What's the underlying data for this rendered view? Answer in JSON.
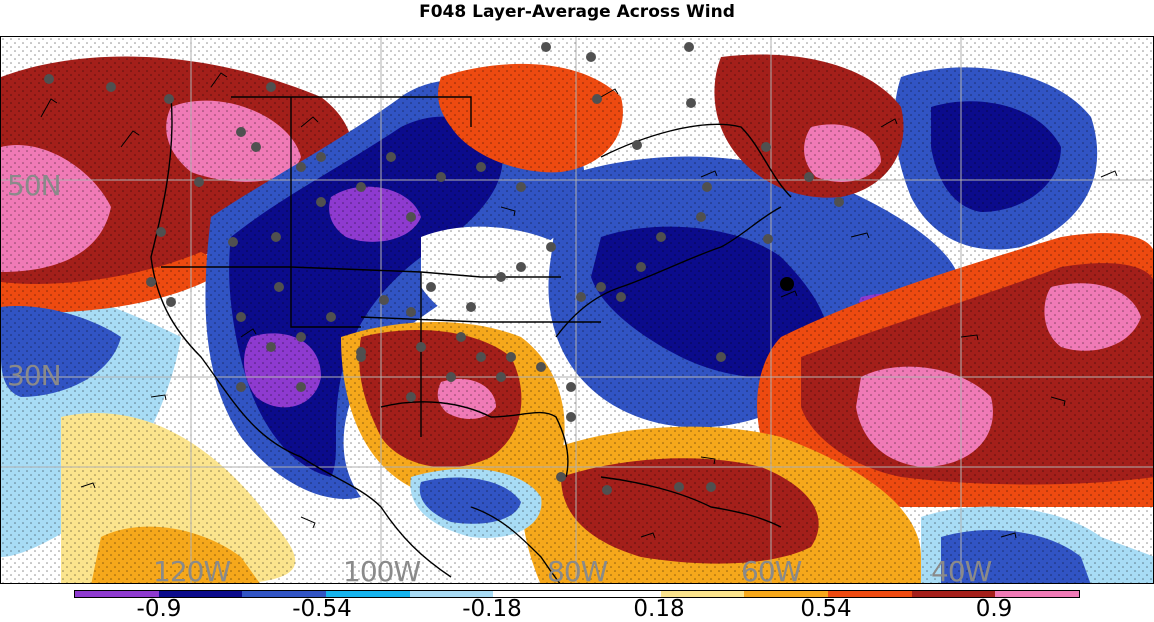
{
  "title": "F048 Layer-Average Across Wind",
  "latitude_labels": [
    "50N",
    "30N"
  ],
  "longitude_labels": [
    "120W",
    "100W",
    "80W",
    "60W",
    "40W"
  ],
  "colorbar": {
    "colors": [
      "#8e3ad0",
      "#0b0b8c",
      "#3154c4",
      "#16b4ee",
      "#a8dcf5",
      "#ffffff",
      "#ffffff",
      "#fbe48d",
      "#f6a81b",
      "#ee4a10",
      "#a41f1a",
      "#f07ab6"
    ],
    "tick_labels": [
      "-0.9",
      "-0.54",
      "-0.18",
      "0.18",
      "0.54",
      "0.9"
    ]
  }
}
